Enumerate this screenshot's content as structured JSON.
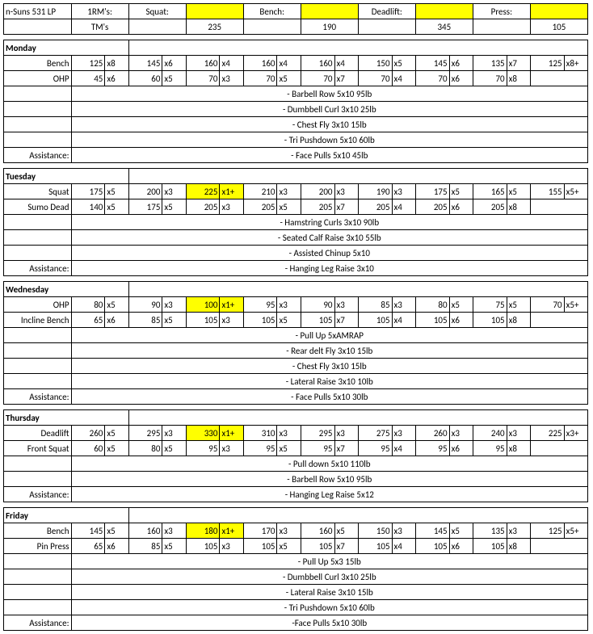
{
  "title": "n-Suns 531 LP",
  "header": {
    "rm_label": "1RM's:",
    "tm_label": "TM's",
    "lifts": [
      "Squat:",
      "Bench:",
      "Deadlift:",
      "Press:"
    ],
    "tms": [
      "235",
      "190",
      "345",
      "105"
    ]
  },
  "highlight_color": "#ffff00",
  "days": [
    {
      "name": "Monday",
      "lifts": [
        {
          "label": "Bench",
          "sets": [
            [
              "125",
              "x8"
            ],
            [
              "145",
              "x6"
            ],
            [
              "160",
              "x4"
            ],
            [
              "160",
              "x4"
            ],
            [
              "160",
              "x4"
            ],
            [
              "150",
              "x5"
            ],
            [
              "145",
              "x6"
            ],
            [
              "135",
              "x7"
            ],
            [
              "125",
              "x8+"
            ]
          ],
          "hl": -1
        },
        {
          "label": "OHP",
          "sets": [
            [
              "45",
              "x6"
            ],
            [
              "60",
              "x5"
            ],
            [
              "70",
              "x3"
            ],
            [
              "70",
              "x5"
            ],
            [
              "70",
              "x7"
            ],
            [
              "70",
              "x4"
            ],
            [
              "70",
              "x6"
            ],
            [
              "70",
              "x8"
            ]
          ],
          "hl": -1
        }
      ],
      "assistance_label": "Assistance:",
      "assistance": [
        "- Barbell Row 5x10 95lb",
        "- Dumbbell Curl 3x10 25lb",
        "- Chest Fly 3x10 15lb",
        "- Tri Pushdown 5x10 60lb",
        "- Face Pulls 5x10 45lb"
      ]
    },
    {
      "name": "Tuesday",
      "lifts": [
        {
          "label": "Squat",
          "sets": [
            [
              "175",
              "x5"
            ],
            [
              "200",
              "x3"
            ],
            [
              "225",
              "x1+"
            ],
            [
              "210",
              "x3"
            ],
            [
              "200",
              "x3"
            ],
            [
              "190",
              "x3"
            ],
            [
              "175",
              "x5"
            ],
            [
              "165",
              "x5"
            ],
            [
              "155",
              "x5+"
            ]
          ],
          "hl": 2
        },
        {
          "label": "Sumo Dead",
          "sets": [
            [
              "140",
              "x5"
            ],
            [
              "175",
              "x5"
            ],
            [
              "205",
              "x3"
            ],
            [
              "205",
              "x5"
            ],
            [
              "205",
              "x7"
            ],
            [
              "205",
              "x4"
            ],
            [
              "205",
              "x6"
            ],
            [
              "205",
              "x8"
            ]
          ],
          "hl": -1
        }
      ],
      "assistance_label": "Assistance:",
      "assistance": [
        "- Hamstring Curls 3x10 90lb",
        "- Seated Calf Raise 3x10 55lb",
        "- Assisted Chinup 5x10",
        "- Hanging Leg Raise 3x10"
      ]
    },
    {
      "name": "Wednesday",
      "lifts": [
        {
          "label": "OHP",
          "sets": [
            [
              "80",
              "x5"
            ],
            [
              "90",
              "x3"
            ],
            [
              "100",
              "x1+"
            ],
            [
              "95",
              "x3"
            ],
            [
              "90",
              "x3"
            ],
            [
              "85",
              "x3"
            ],
            [
              "80",
              "x5"
            ],
            [
              "75",
              "x5"
            ],
            [
              "70",
              "x5+"
            ]
          ],
          "hl": 2
        },
        {
          "label": "Incline Bench",
          "sets": [
            [
              "65",
              "x6"
            ],
            [
              "85",
              "x5"
            ],
            [
              "105",
              "x3"
            ],
            [
              "105",
              "x5"
            ],
            [
              "105",
              "x7"
            ],
            [
              "105",
              "x4"
            ],
            [
              "105",
              "x6"
            ],
            [
              "105",
              "x8"
            ]
          ],
          "hl": -1
        }
      ],
      "assistance_label": "Assistance:",
      "assistance": [
        "- Pull Up 5xAMRAP",
        "- Rear delt Fly 3x10 15lb",
        "- Chest Fly 3x10 15lb",
        "- Lateral Raise 3x10 10lb",
        "- Face Pulls 5x10 30lb"
      ]
    },
    {
      "name": "Thursday",
      "lifts": [
        {
          "label": "Deadlift",
          "sets": [
            [
              "260",
              "x5"
            ],
            [
              "295",
              "x3"
            ],
            [
              "330",
              "x1+"
            ],
            [
              "310",
              "x3"
            ],
            [
              "295",
              "x3"
            ],
            [
              "275",
              "x3"
            ],
            [
              "260",
              "x3"
            ],
            [
              "240",
              "x3"
            ],
            [
              "225",
              "x3+"
            ]
          ],
          "hl": 2
        },
        {
          "label": "Front Squat",
          "sets": [
            [
              "60",
              "x5"
            ],
            [
              "80",
              "x5"
            ],
            [
              "95",
              "x3"
            ],
            [
              "95",
              "x5"
            ],
            [
              "95",
              "x7"
            ],
            [
              "95",
              "x4"
            ],
            [
              "95",
              "x6"
            ],
            [
              "95",
              "x8"
            ]
          ],
          "hl": -1
        }
      ],
      "assistance_label": "Assistance:",
      "assistance": [
        "- Pull down 5x10 110lb",
        "- Barbell Row 5x10 95lb",
        "- Hanging Leg Raise 5x12"
      ]
    },
    {
      "name": "Friday",
      "lifts": [
        {
          "label": "Bench",
          "sets": [
            [
              "145",
              "x5"
            ],
            [
              "160",
              "x3"
            ],
            [
              "180",
              "x1+"
            ],
            [
              "170",
              "x3"
            ],
            [
              "160",
              "x5"
            ],
            [
              "150",
              "x3"
            ],
            [
              "145",
              "x5"
            ],
            [
              "135",
              "x3"
            ],
            [
              "125",
              "x5+"
            ]
          ],
          "hl": 2
        },
        {
          "label": "Pin Press",
          "sets": [
            [
              "65",
              "x6"
            ],
            [
              "85",
              "x5"
            ],
            [
              "105",
              "x3"
            ],
            [
              "105",
              "x5"
            ],
            [
              "105",
              "x7"
            ],
            [
              "105",
              "x4"
            ],
            [
              "105",
              "x6"
            ],
            [
              "105",
              "x8"
            ]
          ],
          "hl": -1
        }
      ],
      "assistance_label": "Assistance:",
      "assistance": [
        "- Pull Up 5x3 15lb",
        "- Dumbbell Curl 3x10 25lb",
        "- Lateral Raise 3x10 15lb",
        "- Tri Pushdown 5x10 60lb",
        "-Face Pulls 5x10 30lb"
      ]
    }
  ]
}
